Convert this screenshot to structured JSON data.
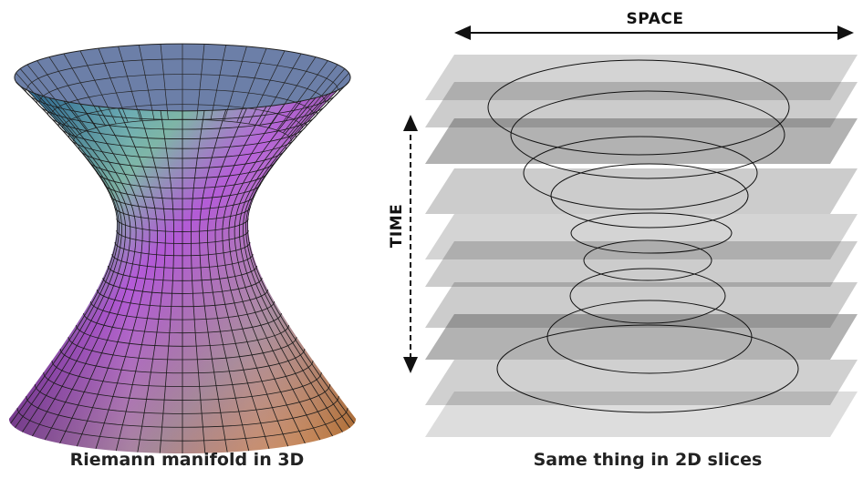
{
  "left": {
    "caption": "Riemann manifold in 3D"
  },
  "right": {
    "caption": "Same thing in 2D slices",
    "x_axis_label": "SPACE",
    "y_axis_label": "TIME"
  }
}
